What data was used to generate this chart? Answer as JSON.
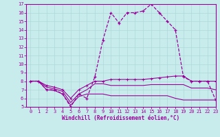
{
  "xlabel": "Windchill (Refroidissement éolien,°C)",
  "background_color": "#c8ecec",
  "grid_color": "#b0d8d8",
  "line_color": "#990099",
  "x": [
    0,
    1,
    2,
    3,
    4,
    5,
    6,
    7,
    8,
    9,
    10,
    11,
    12,
    13,
    14,
    15,
    16,
    17,
    18,
    19,
    20,
    21,
    22,
    23
  ],
  "line1": [
    8,
    8,
    7,
    7,
    6.5,
    5,
    6.5,
    6,
    8.5,
    12.8,
    16,
    14.8,
    16,
    16,
    16.2,
    17,
    16,
    15,
    14,
    8.5,
    8,
    8,
    8,
    5.8
  ],
  "line2": [
    8,
    8,
    7.5,
    7.3,
    7,
    6,
    7,
    7.5,
    8,
    8,
    8.2,
    8.2,
    8.2,
    8.2,
    8.2,
    8.3,
    8.4,
    8.5,
    8.6,
    8.6,
    8,
    8,
    8,
    8
  ],
  "line3": [
    8,
    8,
    7.3,
    7.1,
    6.8,
    5.5,
    6.5,
    7.0,
    7.7,
    7.7,
    7.5,
    7.5,
    7.5,
    7.5,
    7.5,
    7.6,
    7.6,
    7.6,
    7.6,
    7.6,
    7.2,
    7.2,
    7.2,
    7.0
  ],
  "line4": [
    8,
    8,
    7.0,
    6.9,
    6.5,
    5.2,
    6.2,
    6.5,
    6.5,
    6.5,
    6.3,
    6.3,
    6.3,
    6.3,
    6.3,
    6.3,
    6.3,
    6.3,
    6.0,
    5.8,
    5.8,
    5.8,
    5.8,
    5.8
  ],
  "ylim": [
    5,
    17
  ],
  "xlim": [
    -0.5,
    23
  ],
  "yticks": [
    5,
    6,
    7,
    8,
    9,
    10,
    11,
    12,
    13,
    14,
    15,
    16,
    17
  ],
  "xticks": [
    0,
    1,
    2,
    3,
    4,
    5,
    6,
    7,
    8,
    9,
    10,
    11,
    12,
    13,
    14,
    15,
    16,
    17,
    18,
    19,
    20,
    21,
    22,
    23
  ]
}
